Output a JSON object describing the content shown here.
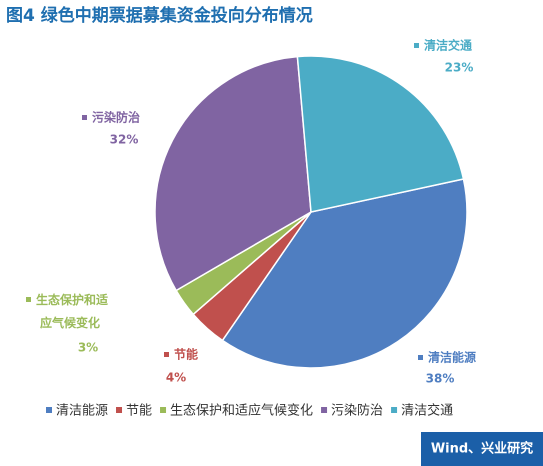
{
  "chart_data": {
    "type": "pie",
    "title": "图4  绿色中期票据募集资金投向分布情况",
    "categories": [
      "清洁能源",
      "节能",
      "生态保护和适应气候变化",
      "污染防治",
      "清洁交通"
    ],
    "values": [
      38,
      4,
      3,
      32,
      23
    ],
    "value_labels": [
      "38%",
      "4%",
      "3%",
      "32%",
      "23%"
    ],
    "colors": [
      "#4f7ec1",
      "#c0504d",
      "#9bbb59",
      "#8064a2",
      "#4bacc6"
    ],
    "source": "Wind、兴业研究"
  }
}
